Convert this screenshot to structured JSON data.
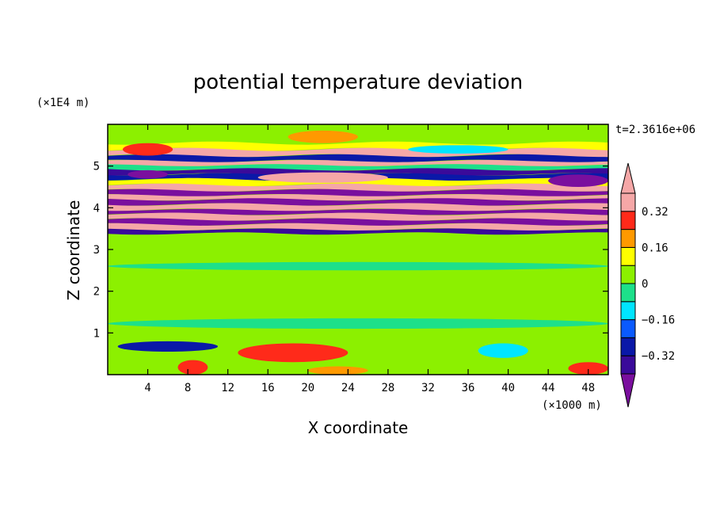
{
  "chart_data": {
    "type": "heatmap",
    "title": "potential temperature deviation",
    "xlabel": "X coordinate",
    "ylabel": "Z coordinate",
    "x_unit_label": "(×1000 m)",
    "y_unit_label": "(×1E4 m)",
    "time_label": "t=2.3616e+06",
    "xlim": [
      0,
      50
    ],
    "ylim": [
      0,
      6
    ],
    "x_ticks": [
      4,
      8,
      12,
      16,
      20,
      24,
      28,
      32,
      36,
      40,
      44,
      48
    ],
    "y_ticks": [
      1,
      2,
      3,
      4,
      5
    ],
    "colorbar": {
      "levels": [
        -0.4,
        -0.32,
        -0.24,
        -0.16,
        -0.08,
        0,
        0.08,
        0.16,
        0.24,
        0.32,
        0.4
      ],
      "tick_labels": [
        "0.32",
        "0.16",
        "0",
        "−0.16",
        "−0.32"
      ],
      "tick_values": [
        0.32,
        0.16,
        0,
        -0.16,
        -0.32
      ],
      "colors": [
        "#7a0f9e",
        "#3a0a9a",
        "#0a18a8",
        "#0a5aff",
        "#00e5ff",
        "#1de08a",
        "#8cf000",
        "#ffff00",
        "#ff9900",
        "#ff2a1a",
        "#f5a7a7"
      ],
      "extend": "both"
    },
    "bands": [
      {
        "z0": 5.55,
        "z1": 5.9,
        "value": 0.04
      },
      {
        "z0": 5.4,
        "z1": 5.55,
        "value": 0.1
      },
      {
        "z0": 5.25,
        "z1": 5.4,
        "value": 0.45
      },
      {
        "z0": 5.12,
        "z1": 5.25,
        "value": -0.25
      },
      {
        "z0": 5.02,
        "z1": 5.12,
        "value": 0.42
      },
      {
        "z0": 4.92,
        "z1": 5.02,
        "value": -0.05
      },
      {
        "z0": 4.8,
        "z1": 4.92,
        "value": -0.4
      },
      {
        "z0": 4.68,
        "z1": 4.8,
        "value": -0.28
      },
      {
        "z0": 4.55,
        "z1": 4.68,
        "value": 0.1
      },
      {
        "z0": 4.42,
        "z1": 4.55,
        "value": 0.45
      },
      {
        "z0": 4.3,
        "z1": 4.42,
        "value": -0.42
      },
      {
        "z0": 4.2,
        "z1": 4.3,
        "value": 0.45
      },
      {
        "z0": 4.08,
        "z1": 4.2,
        "value": -0.45
      },
      {
        "z0": 3.95,
        "z1": 4.08,
        "value": 0.45
      },
      {
        "z0": 3.85,
        "z1": 3.95,
        "value": -0.45
      },
      {
        "z0": 3.72,
        "z1": 3.85,
        "value": 0.45
      },
      {
        "z0": 3.6,
        "z1": 3.72,
        "value": -0.45
      },
      {
        "z0": 3.48,
        "z1": 3.6,
        "value": 0.45
      },
      {
        "z0": 3.38,
        "z1": 3.48,
        "value": -0.36
      },
      {
        "z0": 3.25,
        "z1": 3.38,
        "value": 0.06
      },
      {
        "z0": 0.7,
        "z1": 3.25,
        "value": 0.05
      },
      {
        "z0": 0.0,
        "z1": 0.7,
        "value": 0.06
      }
    ],
    "features": [
      {
        "x0": 1.5,
        "x1": 6.5,
        "z0": 5.25,
        "z1": 5.55,
        "value": 0.25
      },
      {
        "x0": 18,
        "x1": 25,
        "z0": 5.55,
        "z1": 5.85,
        "value": 0.18
      },
      {
        "x0": 15,
        "x1": 28,
        "z0": 4.6,
        "z1": 4.85,
        "value": 0.35
      },
      {
        "x0": 30,
        "x1": 40,
        "z0": 5.3,
        "z1": 5.5,
        "value": -0.14
      },
      {
        "x0": 44,
        "x1": 50,
        "z0": 4.5,
        "z1": 4.8,
        "value": -0.45
      },
      {
        "x0": 2,
        "x1": 6,
        "z0": 4.7,
        "z1": 4.9,
        "value": -0.45
      },
      {
        "x0": 1,
        "x1": 11,
        "z0": 0.55,
        "z1": 0.8,
        "value": -0.3
      },
      {
        "x0": 13,
        "x1": 24,
        "z0": 0.3,
        "z1": 0.75,
        "value": 0.3
      },
      {
        "x0": 7,
        "x1": 10,
        "z0": 0.0,
        "z1": 0.35,
        "value": 0.25
      },
      {
        "x0": 37,
        "x1": 42,
        "z0": 0.4,
        "z1": 0.75,
        "value": -0.12
      },
      {
        "x0": 46,
        "x1": 50,
        "z0": 0.0,
        "z1": 0.3,
        "value": 0.25
      },
      {
        "x0": 20,
        "x1": 26,
        "z0": 0.0,
        "z1": 0.2,
        "value": 0.18
      },
      {
        "x0": 0,
        "x1": 50,
        "z0": 1.1,
        "z1": 1.35,
        "value": -0.02
      },
      {
        "x0": 0,
        "x1": 50,
        "z0": 1.8,
        "z1": 2.1,
        "value": 0.0
      },
      {
        "x0": 0,
        "x1": 50,
        "z0": 2.5,
        "z1": 2.7,
        "value": -0.01
      }
    ]
  }
}
